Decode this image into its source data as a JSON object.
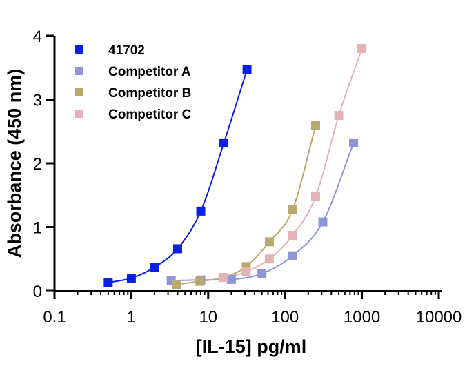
{
  "chart_data": {
    "type": "scatter",
    "xlabel": "[IL-15] pg/ml",
    "ylabel": "Absorbance (450 nm)",
    "x_scale": "log",
    "xlim": [
      0.1,
      10000
    ],
    "ylim": [
      0,
      4
    ],
    "x_ticks": [
      0.1,
      1,
      10,
      100,
      1000,
      10000
    ],
    "x_tick_labels": [
      "0.1",
      "1",
      "10",
      "100",
      "1000",
      "10000"
    ],
    "y_ticks": [
      0,
      1,
      2,
      3,
      4
    ],
    "y_tick_labels": [
      "0",
      "1",
      "2",
      "3",
      "4"
    ],
    "legend_position": "top-left",
    "grid": false,
    "series": [
      {
        "name": "41702",
        "color": "#0a1fe6",
        "points": [
          {
            "x": 0.5,
            "y": 0.13
          },
          {
            "x": 1,
            "y": 0.2
          },
          {
            "x": 2,
            "y": 0.37
          },
          {
            "x": 4,
            "y": 0.66
          },
          {
            "x": 8,
            "y": 1.25
          },
          {
            "x": 16,
            "y": 2.32
          },
          {
            "x": 32,
            "y": 3.47
          }
        ]
      },
      {
        "name": "Competitor A",
        "color": "#8e96d6",
        "points": [
          {
            "x": 3.3,
            "y": 0.16
          },
          {
            "x": 8,
            "y": 0.17
          },
          {
            "x": 20,
            "y": 0.18
          },
          {
            "x": 50,
            "y": 0.27
          },
          {
            "x": 125,
            "y": 0.55
          },
          {
            "x": 310,
            "y": 1.08
          },
          {
            "x": 780,
            "y": 2.32
          }
        ]
      },
      {
        "name": "Competitor B",
        "color": "#b8aa6c",
        "points": [
          {
            "x": 3.9,
            "y": 0.1
          },
          {
            "x": 7.8,
            "y": 0.15
          },
          {
            "x": 15.6,
            "y": 0.21
          },
          {
            "x": 31.25,
            "y": 0.38
          },
          {
            "x": 62.5,
            "y": 0.77
          },
          {
            "x": 125,
            "y": 1.27
          },
          {
            "x": 250,
            "y": 2.59
          }
        ]
      },
      {
        "name": "Competitor C",
        "color": "#e5b3b6",
        "points": [
          {
            "x": 15.6,
            "y": 0.21
          },
          {
            "x": 31.25,
            "y": 0.3
          },
          {
            "x": 62.5,
            "y": 0.5
          },
          {
            "x": 125,
            "y": 0.87
          },
          {
            "x": 250,
            "y": 1.48
          },
          {
            "x": 500,
            "y": 2.75
          },
          {
            "x": 1000,
            "y": 3.8
          }
        ]
      }
    ]
  }
}
